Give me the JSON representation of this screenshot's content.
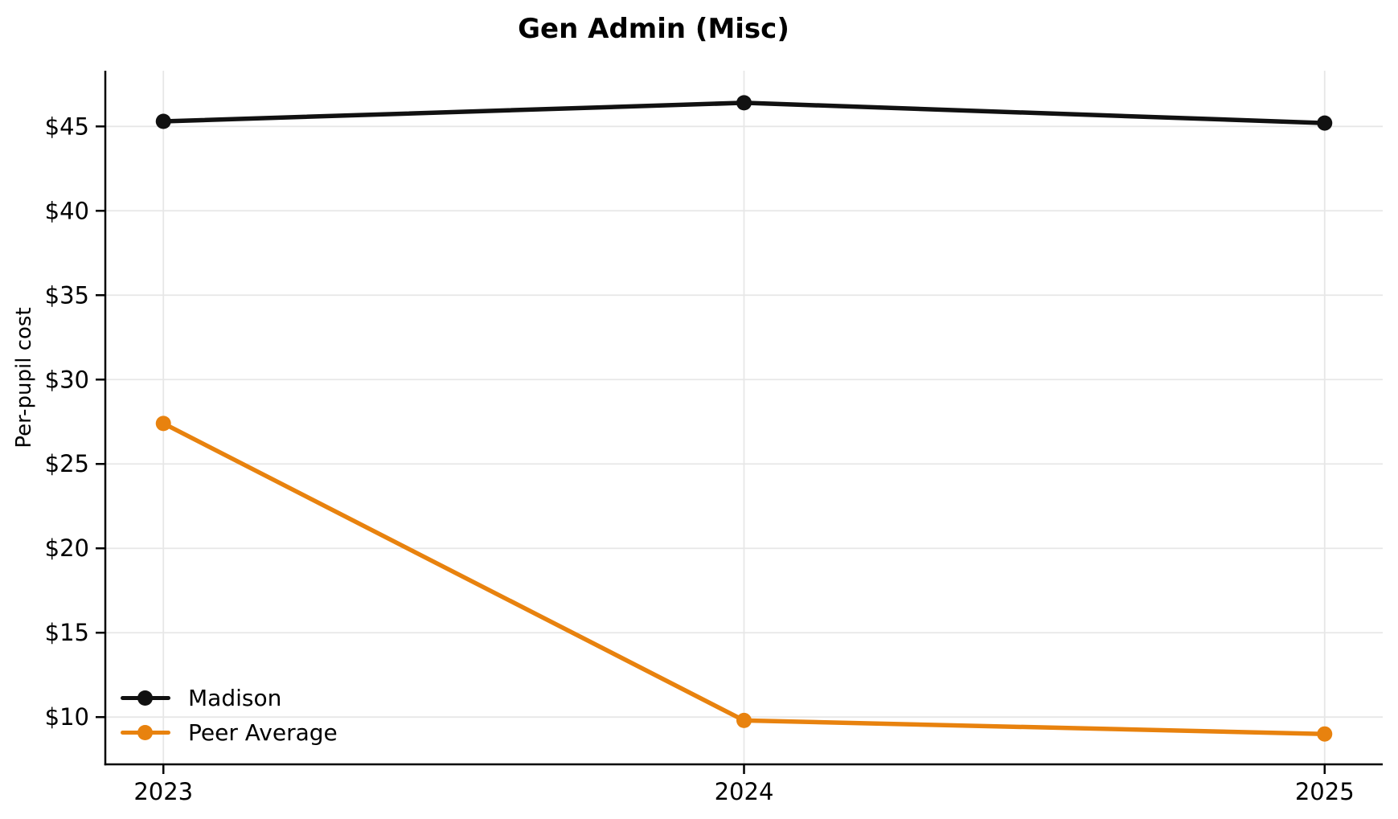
{
  "chart_data": {
    "type": "line",
    "title": "Gen Admin (Misc)",
    "xlabel": "",
    "ylabel": "Per-pupil cost",
    "x": [
      2023,
      2024,
      2025
    ],
    "xtick_labels": [
      "2023",
      "2024",
      "2025"
    ],
    "series": [
      {
        "name": "Madison",
        "color": "#111111",
        "values": [
          45.3,
          46.4,
          45.2
        ]
      },
      {
        "name": "Peer Average",
        "color": "#e8820e",
        "values": [
          27.4,
          9.8,
          9.0
        ]
      }
    ],
    "yticks": [
      {
        "value": 10,
        "label": "$10"
      },
      {
        "value": 15,
        "label": "$15"
      },
      {
        "value": 20,
        "label": "$20"
      },
      {
        "value": 25,
        "label": "$25"
      },
      {
        "value": 30,
        "label": "$30"
      },
      {
        "value": 35,
        "label": "$35"
      },
      {
        "value": 40,
        "label": "$40"
      },
      {
        "value": 45,
        "label": "$45"
      }
    ],
    "xlim": [
      2022.9,
      2025.1
    ],
    "ylim": [
      7.2,
      48.3
    ],
    "grid": true,
    "grid_color": "#e7e7e7",
    "axis_color": "#000000",
    "legend_position": "lower-left",
    "legend_frame": false
  }
}
